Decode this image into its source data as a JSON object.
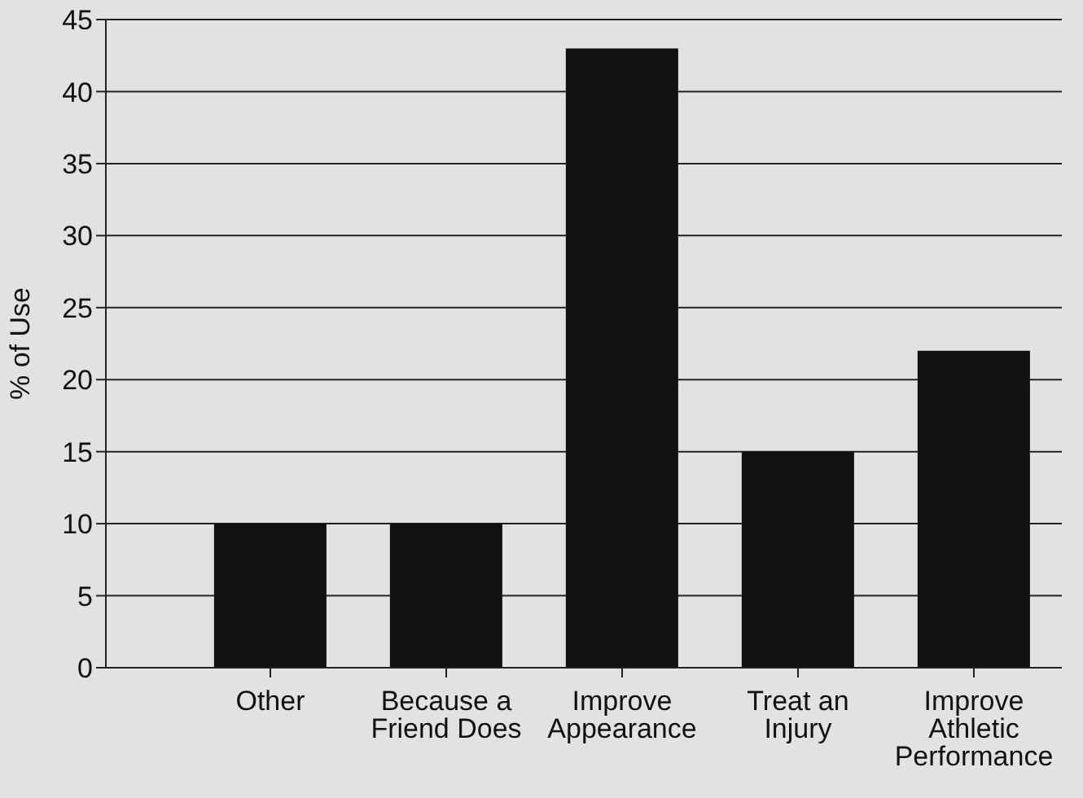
{
  "chart_data": {
    "type": "bar",
    "ylabel": "% of Use",
    "categories": [
      "Other",
      "Because a Friend Does",
      "Improve Appearance",
      "Treat an Injury",
      "Improve Athletic Performance"
    ],
    "values": [
      10,
      10,
      43,
      15,
      22
    ],
    "color": "#111111",
    "ylim": [
      0,
      45
    ],
    "yticks": [
      0,
      5,
      10,
      15,
      20,
      25,
      30,
      35,
      40,
      45
    ],
    "grid": "y"
  }
}
